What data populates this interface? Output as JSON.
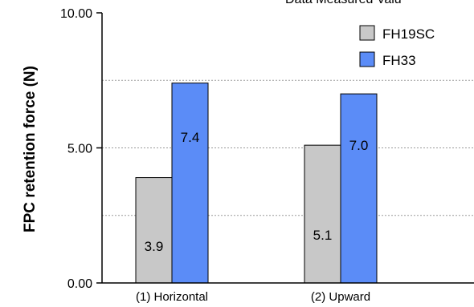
{
  "chart_data": {
    "type": "bar",
    "title": "",
    "top_text_fragment": "Data Measured Valu",
    "xlabel": "",
    "ylabel": "FPC retention force (N)",
    "ylim": [
      0,
      10
    ],
    "ytick_labels": [
      "0.00",
      "5.00",
      "10.00"
    ],
    "ytick_values": [
      0,
      5,
      10
    ],
    "gridlines": [
      2.5,
      5,
      7.5
    ],
    "categories": [
      "(1) Horizontal",
      "(2) Upward"
    ],
    "series": [
      {
        "name": "FH19SC",
        "color": "#c8c8c8",
        "values": [
          3.9,
          5.1
        ],
        "labels": [
          "3.9",
          "5.1"
        ]
      },
      {
        "name": "FH33",
        "color": "#5b8cf7",
        "values": [
          7.4,
          7.0
        ],
        "labels": [
          "7.4",
          "7.0"
        ]
      }
    ],
    "legend": "top-right"
  }
}
